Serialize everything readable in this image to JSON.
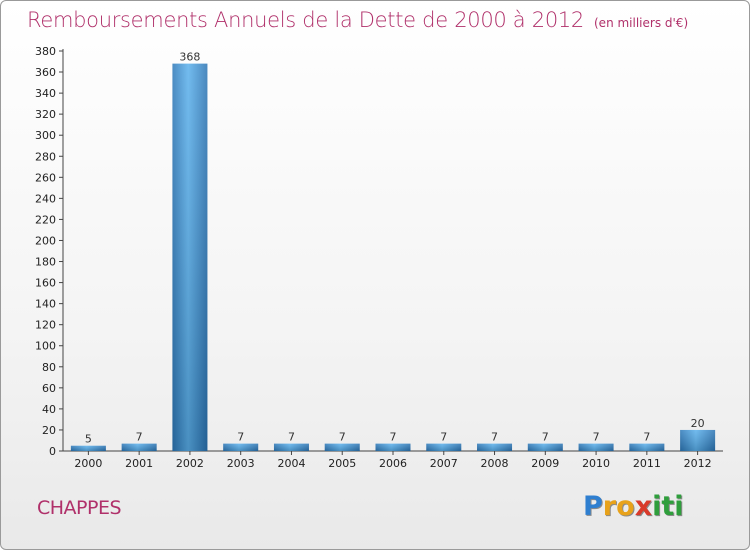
{
  "chart_data": {
    "type": "bar",
    "title": "Remboursements Annuels de la Dette de 2000 à 2012",
    "unit_note": "(en milliers d'€)",
    "categories": [
      "2000",
      "2001",
      "2002",
      "2003",
      "2004",
      "2005",
      "2006",
      "2007",
      "2008",
      "2009",
      "2010",
      "2011",
      "2012"
    ],
    "values": [
      5,
      7,
      368,
      7,
      7,
      7,
      7,
      7,
      7,
      7,
      7,
      7,
      20
    ],
    "data_labels": [
      "5",
      "7",
      "368",
      "7",
      "7",
      "7",
      "7",
      "7",
      "7",
      "7",
      "7",
      "7",
      "20"
    ],
    "ylim": [
      0,
      380
    ],
    "y_ticks": [
      0,
      20,
      40,
      60,
      80,
      100,
      120,
      140,
      160,
      180,
      200,
      220,
      240,
      260,
      280,
      300,
      320,
      340,
      360,
      380
    ],
    "grid": false,
    "bar_color": "#3a8fd1"
  },
  "place_name": "CHAPPES",
  "logo": {
    "letters": [
      "P",
      "r",
      "o",
      "x",
      "i",
      "t",
      "i"
    ],
    "colors": [
      "#2f7fd0",
      "#e8a21a",
      "#e8a21a",
      "#d93a2a",
      "#2f9e3c",
      "#2f9e3c",
      "#2f9e3c"
    ]
  }
}
